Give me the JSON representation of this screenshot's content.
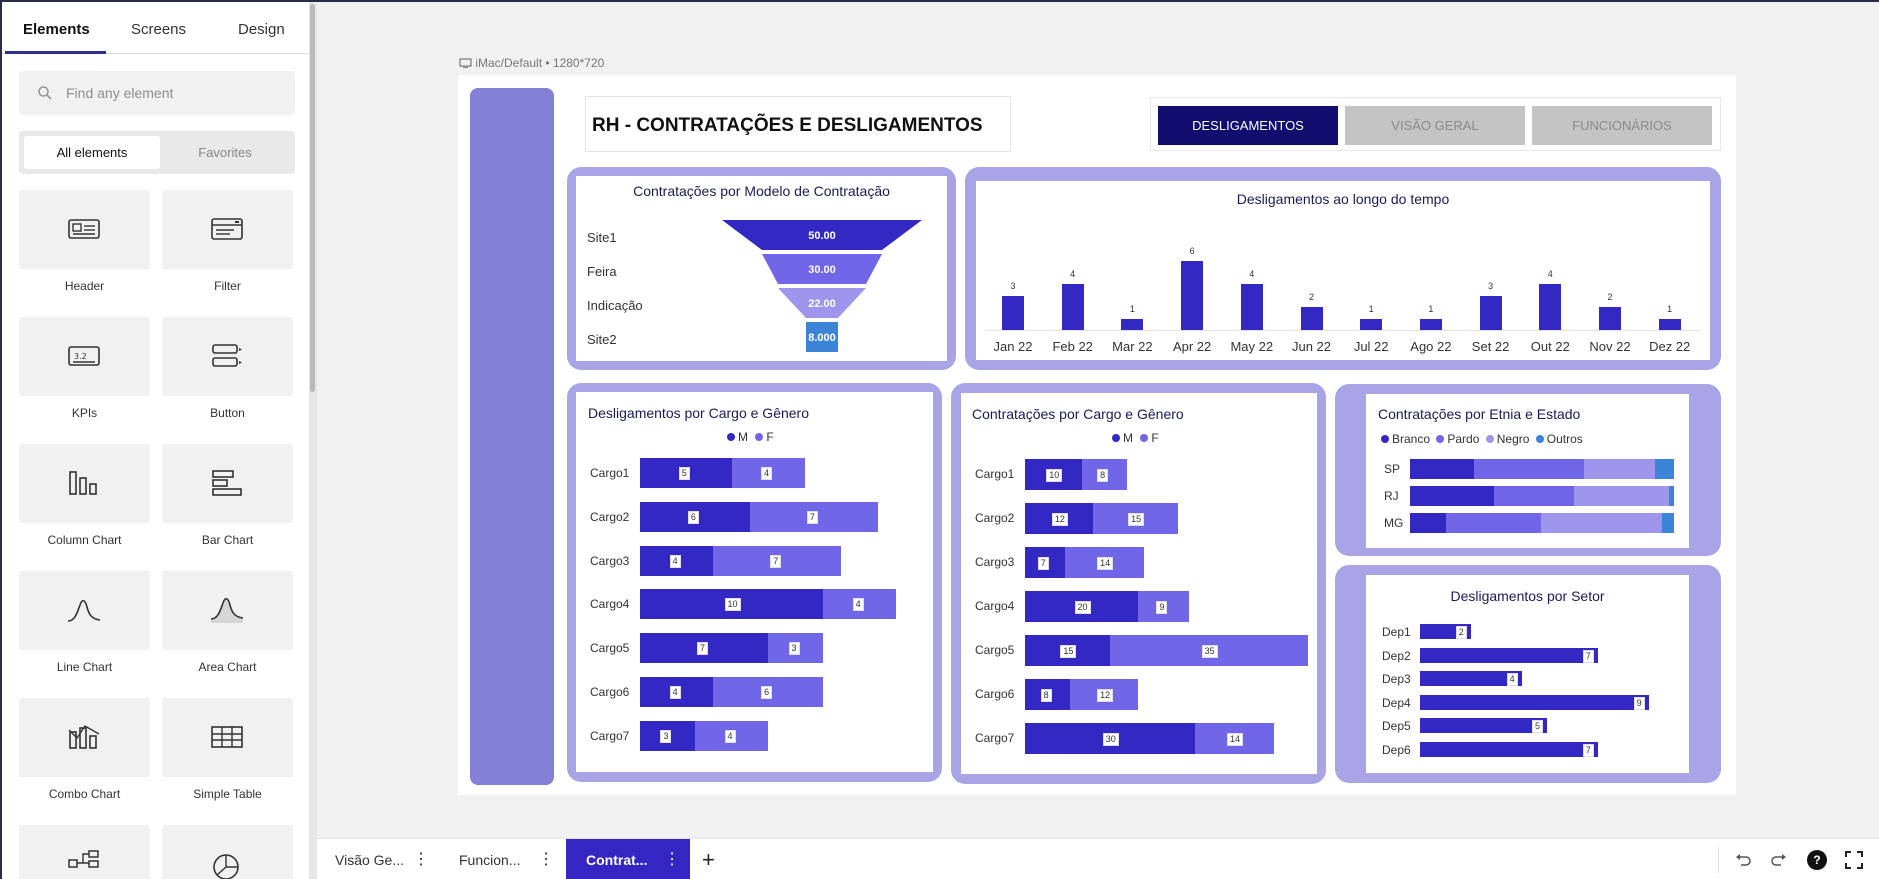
{
  "left_panel": {
    "tabs": [
      "Elements",
      "Screens",
      "Design"
    ],
    "search_placeholder": "Find any element",
    "segment": {
      "active": "All elements",
      "inactive": "Favorites"
    },
    "elements": [
      {
        "label": "Header",
        "icon": "header-icon"
      },
      {
        "label": "Filter",
        "icon": "filter-icon"
      },
      {
        "label": "KPIs",
        "icon": "kpis-icon"
      },
      {
        "label": "Button",
        "icon": "button-icon"
      },
      {
        "label": "Column Chart",
        "icon": "column-chart-icon"
      },
      {
        "label": "Bar Chart",
        "icon": "bar-chart-icon"
      },
      {
        "label": "Line Chart",
        "icon": "line-chart-icon"
      },
      {
        "label": "Area Chart",
        "icon": "area-chart-icon"
      },
      {
        "label": "Combo Chart",
        "icon": "combo-chart-icon"
      },
      {
        "label": "Simple Table",
        "icon": "simple-table-icon"
      }
    ]
  },
  "canvas": {
    "device_label": "iMac/Default • 1280*720",
    "dashboard_title": "RH - CONTRATAÇÕES E DESLIGAMENTOS",
    "nav": [
      {
        "label": "DESLIGAMENTOS",
        "active": true
      },
      {
        "label": "VISÃO GERAL",
        "active": false
      },
      {
        "label": "FUNCIONÁRIOS",
        "active": false
      }
    ]
  },
  "colors": {
    "dark": "#3428c4",
    "medium": "#7266e8",
    "light": "#9d96ec",
    "blue": "#3c84d8",
    "panel": "#a9a4e6",
    "sidebar": "#8480d6",
    "nav_active": "#120c6e"
  },
  "chart_data": [
    {
      "type": "funnel",
      "title": "Contratações por Modelo de Contratação",
      "categories": [
        "Site1",
        "Feira",
        "Indicação",
        "Site2"
      ],
      "value_labels": [
        "50.00",
        "30.00",
        "22.00",
        "8.000"
      ],
      "values": [
        50,
        30,
        22,
        8
      ]
    },
    {
      "type": "bar",
      "title": "Desligamentos ao longo do tempo",
      "categories": [
        "Jan 22",
        "Feb 22",
        "Mar 22",
        "Apr 22",
        "May 22",
        "Jun 22",
        "Jul 22",
        "Ago 22",
        "Set 22",
        "Out 22",
        "Nov 22",
        "Dez 22"
      ],
      "values": [
        3,
        4,
        1,
        6,
        4,
        2,
        1,
        1,
        3,
        4,
        2,
        1
      ]
    },
    {
      "type": "stacked-bar-horizontal",
      "title": "Desligamentos por Cargo e Gênero",
      "legend": [
        "M",
        "F"
      ],
      "categories": [
        "Cargo1",
        "Cargo2",
        "Cargo3",
        "Cargo4",
        "Cargo5",
        "Cargo6",
        "Cargo7"
      ],
      "series": [
        {
          "name": "M",
          "values": [
            5,
            6,
            4,
            10,
            7,
            4,
            3
          ]
        },
        {
          "name": "F",
          "values": [
            4,
            7,
            7,
            4,
            3,
            6,
            4
          ]
        }
      ]
    },
    {
      "type": "stacked-bar-horizontal",
      "title": "Contratações por Cargo e Gênero",
      "legend": [
        "M",
        "F"
      ],
      "categories": [
        "Cargo1",
        "Cargo2",
        "Cargo3",
        "Cargo4",
        "Cargo5",
        "Cargo6",
        "Cargo7"
      ],
      "series": [
        {
          "name": "M",
          "values": [
            10,
            12,
            7,
            20,
            15,
            8,
            30
          ]
        },
        {
          "name": "F",
          "values": [
            8,
            15,
            14,
            9,
            35,
            12,
            14
          ]
        }
      ]
    },
    {
      "type": "stacked-bar-100",
      "title": "Contratações por Etnia e Estado",
      "legend": [
        "Branco",
        "Pardo",
        "Negro",
        "Outros"
      ],
      "categories": [
        "SP",
        "RJ",
        "MG"
      ],
      "series": [
        {
          "name": "Branco",
          "values": [
            0.27,
            0.37,
            0.18
          ]
        },
        {
          "name": "Pardo",
          "values": [
            0.47,
            0.35,
            0.48
          ]
        },
        {
          "name": "Negro",
          "values": [
            0.3,
            0.42,
            0.61
          ]
        },
        {
          "name": "Outros",
          "values": [
            0.08,
            0.02,
            0.06
          ]
        }
      ]
    },
    {
      "type": "bar-horizontal",
      "title": "Desligamentos por Setor",
      "categories": [
        "Dep1",
        "Dep2",
        "Dep3",
        "Dep4",
        "Dep5",
        "Dep6"
      ],
      "values": [
        2,
        7,
        4,
        9,
        5,
        7
      ]
    }
  ],
  "bottom_tabs": [
    {
      "label": "Visão Ge...",
      "active": false
    },
    {
      "label": "Funcion...",
      "active": false
    },
    {
      "label": "Contrat...",
      "active": true
    }
  ]
}
